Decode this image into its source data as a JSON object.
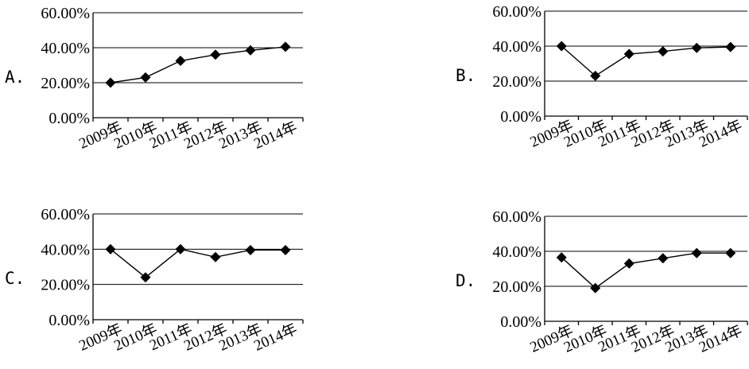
{
  "chart_data": [
    {
      "type": "line",
      "option_label": "A.",
      "categories": [
        "2009年",
        "2010年",
        "2011年",
        "2012年",
        "2013年",
        "2014年"
      ],
      "series": [
        {
          "values": [
            20.0,
            23.0,
            32.5,
            36.0,
            38.5,
            40.5
          ]
        }
      ],
      "yticks": [
        "0.00%",
        "20.00%",
        "40.00%",
        "60.00%"
      ],
      "ylim": [
        0,
        60
      ],
      "grid": true,
      "marker": "diamond"
    },
    {
      "type": "line",
      "option_label": "B.",
      "categories": [
        "2009年",
        "2010年",
        "2011年",
        "2012年",
        "2013年",
        "2014年"
      ],
      "series": [
        {
          "values": [
            40.0,
            23.0,
            35.5,
            37.0,
            39.0,
            39.5
          ]
        }
      ],
      "yticks": [
        "0.00%",
        "20.00%",
        "40.00%",
        "60.00%"
      ],
      "ylim": [
        0,
        60
      ],
      "grid": true,
      "marker": "diamond"
    },
    {
      "type": "line",
      "option_label": "C.",
      "categories": [
        "2009年",
        "2010年",
        "2011年",
        "2012年",
        "2013年",
        "2014年"
      ],
      "series": [
        {
          "values": [
            40.0,
            24.0,
            40.0,
            35.5,
            39.5,
            39.5
          ]
        }
      ],
      "yticks": [
        "0.00%",
        "20.00%",
        "40.00%",
        "60.00%"
      ],
      "ylim": [
        0,
        60
      ],
      "grid": true,
      "marker": "diamond"
    },
    {
      "type": "line",
      "option_label": "D.",
      "categories": [
        "2009年",
        "2010年",
        "2011年",
        "2012年",
        "2013年",
        "2014年"
      ],
      "series": [
        {
          "values": [
            36.5,
            19.0,
            33.0,
            36.0,
            39.0,
            39.0
          ]
        }
      ],
      "yticks": [
        "0.00%",
        "20.00%",
        "40.00%",
        "60.00%"
      ],
      "ylim": [
        0,
        60
      ],
      "grid": true,
      "marker": "diamond"
    }
  ]
}
